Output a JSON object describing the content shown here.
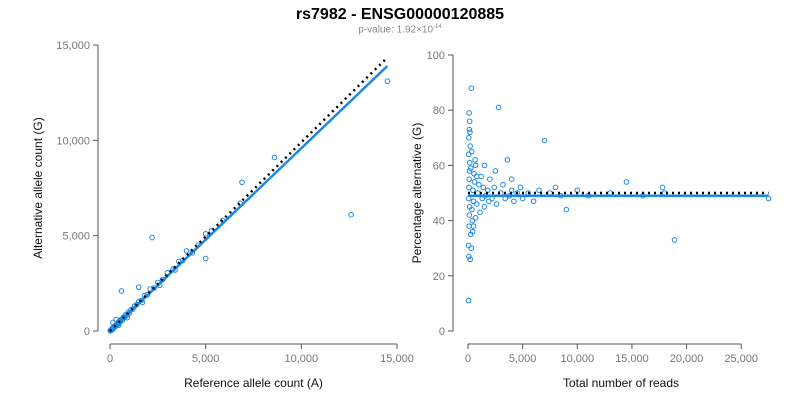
{
  "header": {
    "title": "rs7982 - ENSG00000120885",
    "subtitle_prefix": "p-value: 1.92×10",
    "subtitle_exponent": "-14"
  },
  "colors": {
    "points": "#1E88E5",
    "fit_line": "#1E88E5",
    "reference_line": "#000000",
    "axis": "#555555"
  },
  "chart_data": [
    {
      "type": "scatter",
      "xlabel": "Reference allele count (A)",
      "ylabel": "Alternative allele count (G)",
      "xlim": [
        0,
        15000
      ],
      "ylim": [
        0,
        15000
      ],
      "xticks": [
        0,
        5000,
        10000,
        15000
      ],
      "xtick_labels": [
        "0",
        "5,000",
        "10,000",
        "15,000"
      ],
      "yticks": [
        0,
        5000,
        10000,
        15000
      ],
      "ytick_labels": [
        "0",
        "5,000",
        "10,000",
        "15,000"
      ],
      "grid": false,
      "reference_line": {
        "style": "dotted",
        "x": [
          0,
          14500
        ],
        "y": [
          0,
          14350
        ]
      },
      "fit_line": {
        "style": "solid",
        "x": [
          0,
          14500
        ],
        "y": [
          0,
          13900
        ]
      },
      "points": [
        [
          12,
          20
        ],
        [
          25,
          15
        ],
        [
          40,
          50
        ],
        [
          55,
          35
        ],
        [
          70,
          80
        ],
        [
          90,
          60
        ],
        [
          110,
          120
        ],
        [
          130,
          90
        ],
        [
          150,
          170
        ],
        [
          175,
          140
        ],
        [
          200,
          210
        ],
        [
          225,
          180
        ],
        [
          250,
          260
        ],
        [
          280,
          240
        ],
        [
          310,
          300
        ],
        [
          340,
          320
        ],
        [
          370,
          380
        ],
        [
          400,
          350
        ],
        [
          430,
          450
        ],
        [
          470,
          420
        ],
        [
          510,
          540
        ],
        [
          550,
          500
        ],
        [
          600,
          620
        ],
        [
          650,
          580
        ],
        [
          700,
          720
        ],
        [
          760,
          700
        ],
        [
          820,
          850
        ],
        [
          880,
          820
        ],
        [
          950,
          980
        ],
        [
          1020,
          950
        ],
        [
          1100,
          1120
        ],
        [
          1200,
          1150
        ],
        [
          1300,
          1320
        ],
        [
          1400,
          1380
        ],
        [
          1500,
          1550
        ],
        [
          1650,
          1600
        ],
        [
          1800,
          1850
        ],
        [
          1950,
          1900
        ],
        [
          2100,
          2200
        ],
        [
          2300,
          2250
        ],
        [
          2500,
          2550
        ],
        [
          2750,
          2700
        ],
        [
          3000,
          3050
        ],
        [
          3300,
          3250
        ],
        [
          3600,
          3650
        ],
        [
          3800,
          3700
        ],
        [
          4000,
          4200
        ],
        [
          4300,
          4100
        ],
        [
          4600,
          4500
        ],
        [
          5000,
          5100
        ],
        [
          5300,
          5250
        ],
        [
          5900,
          5800
        ],
        [
          6800,
          6700
        ],
        [
          150,
          450
        ],
        [
          320,
          600
        ],
        [
          600,
          2100
        ],
        [
          1500,
          2300
        ],
        [
          2200,
          4900
        ],
        [
          5000,
          3800
        ],
        [
          6900,
          7800
        ],
        [
          8600,
          9100
        ],
        [
          12600,
          6100
        ],
        [
          14500,
          13100
        ],
        [
          3400,
          3200
        ],
        [
          2600,
          2400
        ],
        [
          1700,
          1500
        ],
        [
          900,
          700
        ],
        [
          450,
          300
        ]
      ]
    },
    {
      "type": "scatter",
      "xlabel": "Total number of reads",
      "ylabel": "Percentage alternative (G)",
      "xlim": [
        0,
        28000
      ],
      "ylim": [
        0,
        100
      ],
      "xticks": [
        0,
        5000,
        10000,
        15000,
        20000,
        25000
      ],
      "xtick_labels": [
        "0",
        "5,000",
        "10,000",
        "15,000",
        "20,000",
        "25,000"
      ],
      "yticks": [
        0,
        20,
        40,
        60,
        80,
        100
      ],
      "ytick_labels": [
        "0",
        "20",
        "40",
        "60",
        "80",
        "100"
      ],
      "grid": false,
      "reference_line": {
        "style": "dotted",
        "x": [
          0,
          27500
        ],
        "y": [
          50,
          50
        ]
      },
      "fit_line": {
        "style": "solid",
        "x": [
          0,
          27500
        ],
        "y": [
          49,
          49
        ]
      },
      "points": [
        [
          50,
          11
        ],
        [
          80,
          27
        ],
        [
          60,
          31
        ],
        [
          100,
          38
        ],
        [
          120,
          42
        ],
        [
          150,
          45
        ],
        [
          70,
          48
        ],
        [
          90,
          52
        ],
        [
          110,
          55
        ],
        [
          130,
          58
        ],
        [
          160,
          61
        ],
        [
          60,
          64
        ],
        [
          200,
          67
        ],
        [
          80,
          70
        ],
        [
          120,
          73
        ],
        [
          150,
          76
        ],
        [
          100,
          79
        ],
        [
          300,
          88
        ],
        [
          250,
          35
        ],
        [
          400,
          40
        ],
        [
          350,
          44
        ],
        [
          500,
          47
        ],
        [
          450,
          51
        ],
        [
          600,
          54
        ],
        [
          550,
          57
        ],
        [
          700,
          60
        ],
        [
          650,
          62
        ],
        [
          800,
          46
        ],
        [
          900,
          50
        ],
        [
          1000,
          53
        ],
        [
          1100,
          43
        ],
        [
          1200,
          56
        ],
        [
          1300,
          48
        ],
        [
          1400,
          52
        ],
        [
          1500,
          45
        ],
        [
          1600,
          49
        ],
        [
          1800,
          51
        ],
        [
          1900,
          47
        ],
        [
          2000,
          55
        ],
        [
          2200,
          48
        ],
        [
          2400,
          52
        ],
        [
          2600,
          46
        ],
        [
          2800,
          81
        ],
        [
          3000,
          50
        ],
        [
          3200,
          53
        ],
        [
          3400,
          48
        ],
        [
          3600,
          62
        ],
        [
          3800,
          49
        ],
        [
          4000,
          51
        ],
        [
          4200,
          47
        ],
        [
          4500,
          50
        ],
        [
          4800,
          52
        ],
        [
          5000,
          48
        ],
        [
          5500,
          50
        ],
        [
          6000,
          47
        ],
        [
          6500,
          51
        ],
        [
          7000,
          69
        ],
        [
          7500,
          50
        ],
        [
          8000,
          52
        ],
        [
          8500,
          49
        ],
        [
          9000,
          44
        ],
        [
          10000,
          51
        ],
        [
          11000,
          49
        ],
        [
          13000,
          50
        ],
        [
          14500,
          54
        ],
        [
          16000,
          49
        ],
        [
          17800,
          52
        ],
        [
          18000,
          50
        ],
        [
          18900,
          33
        ],
        [
          27500,
          48
        ],
        [
          300,
          30
        ],
        [
          200,
          26
        ],
        [
          500,
          38
        ],
        [
          700,
          41
        ],
        [
          250,
          59
        ],
        [
          350,
          65
        ],
        [
          180,
          72
        ],
        [
          420,
          36
        ],
        [
          800,
          56
        ],
        [
          1500,
          60
        ],
        [
          2500,
          58
        ],
        [
          4000,
          55
        ]
      ]
    }
  ]
}
